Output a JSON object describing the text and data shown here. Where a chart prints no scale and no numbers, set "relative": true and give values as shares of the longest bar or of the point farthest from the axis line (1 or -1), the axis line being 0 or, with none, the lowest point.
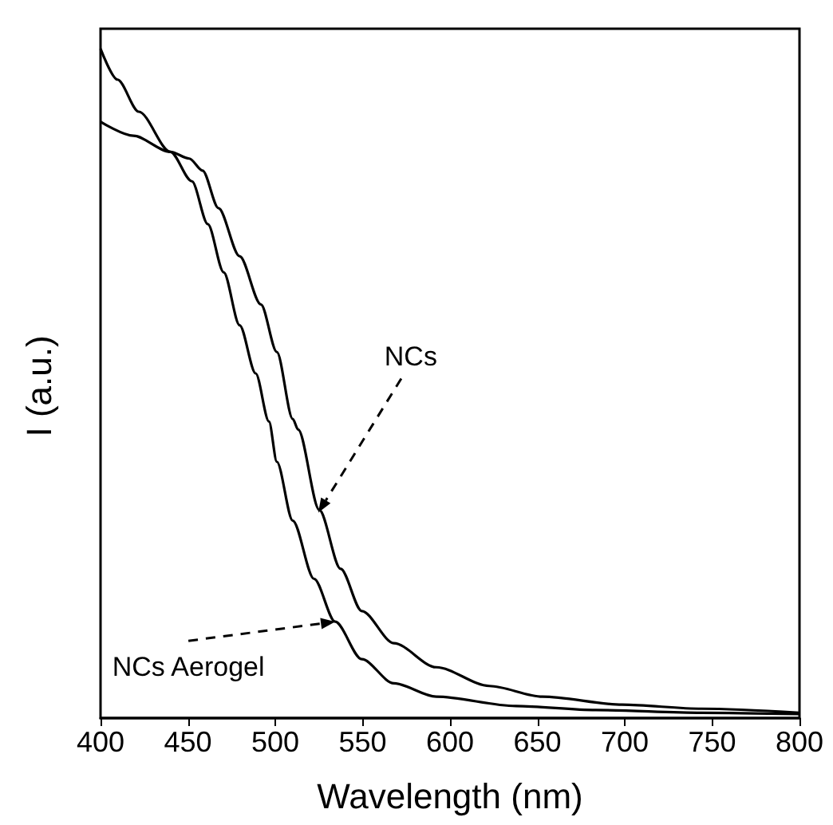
{
  "chart_data": {
    "type": "line",
    "relative": true,
    "xlabel": "Wavelength (nm)",
    "ylabel": "I (a.u.)",
    "xlim": [
      400,
      800
    ],
    "xticks": [
      400,
      450,
      500,
      550,
      600,
      650,
      700,
      750,
      800
    ],
    "grid": false,
    "marker": "none",
    "line_style": "solid",
    "series": [
      {
        "color": "#000000",
        "x": [
          400,
          409.7,
          421.9,
          440,
          452.3,
          461.4,
          470.5,
          479.6,
          488.8,
          496.4,
          500.9,
          510,
          522.2,
          534.3,
          549.5,
          567.8,
          592.1,
          637.7,
          683.3,
          744,
          800
        ],
        "values": [
          1.0,
          0.954,
          0.906,
          0.846,
          0.802,
          0.738,
          0.666,
          0.587,
          0.515,
          0.443,
          0.383,
          0.295,
          0.208,
          0.144,
          0.088,
          0.052,
          0.032,
          0.018,
          0.012,
          0.008,
          0.006
        ]
      },
      {
        "color": "#000000",
        "x": [
          400,
          418.8,
          440,
          450.8,
          458.4,
          467.5,
          479.6,
          491.8,
          500.9,
          510,
          513.1,
          525.2,
          537.4,
          549.5,
          567.8,
          592.1,
          622.5,
          652.9,
          698.5,
          744,
          800
        ],
        "values": [
          0.891,
          0.87,
          0.846,
          0.836,
          0.818,
          0.762,
          0.69,
          0.618,
          0.547,
          0.447,
          0.431,
          0.311,
          0.223,
          0.16,
          0.112,
          0.076,
          0.048,
          0.032,
          0.02,
          0.014,
          0.008
        ]
      }
    ],
    "annotations": [
      {
        "text": "NCs",
        "x": 524.6,
        "y": 0.307
      },
      {
        "text": "NCs Aerogel",
        "x": 534.3,
        "y": 0.144
      }
    ]
  }
}
